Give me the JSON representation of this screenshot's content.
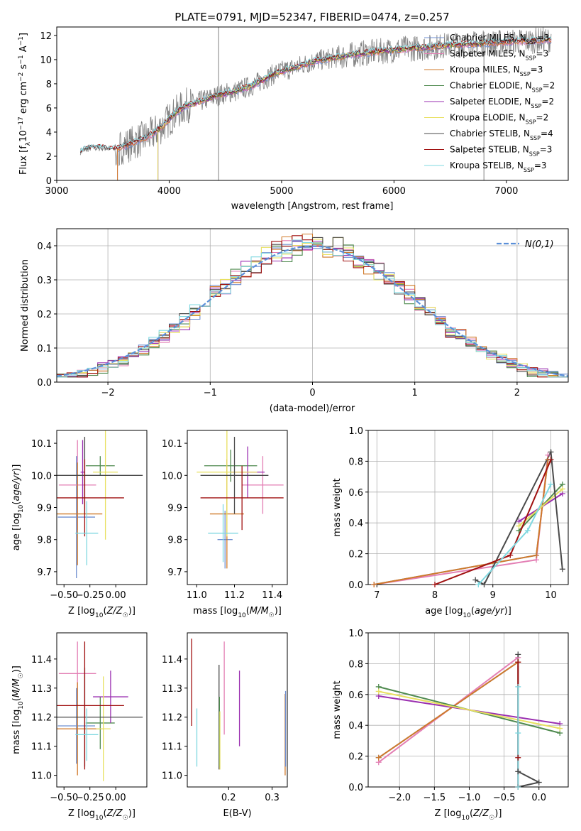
{
  "figure": {
    "title": "PLATE=0791, MJD=52347, FIBERID=0474, z=0.257"
  },
  "colors": {
    "Chabrier MILES": "#6f8fd0",
    "Salpeter MILES": "#e37fb4",
    "Kroupa MILES": "#d07a2a",
    "Chabrier ELODIE": "#4f8a4f",
    "Salpeter ELODIE": "#9a2fb0",
    "Kroupa ELODIE": "#e8e060",
    "Chabrier STELIB": "#4a4a4a",
    "Salpeter STELIB": "#a01010",
    "Kroupa STELIB": "#7fd8e0",
    "data": "#808080",
    "normal": "#5b8fd8"
  },
  "models": [
    "Chabrier MILES",
    "Salpeter MILES",
    "Kroupa MILES",
    "Chabrier ELODIE",
    "Salpeter ELODIE",
    "Kroupa ELODIE",
    "Chabrier STELIB",
    "Salpeter STELIB",
    "Kroupa STELIB"
  ],
  "chart_data": [
    {
      "id": "spectrum",
      "type": "line",
      "xlabel": "wavelength [Angstrom, rest frame]",
      "ylabel": "Flux [f_λ10^-17 erg cm^-2 s^-1 A^-1]",
      "xlim": [
        3000,
        7550
      ],
      "ylim": [
        0,
        12.7
      ],
      "xticks": [
        3000,
        4000,
        5000,
        6000,
        7000
      ],
      "yticks": [
        0,
        2,
        4,
        6,
        8,
        10,
        12
      ],
      "grid": false,
      "legend_position": "top-right",
      "legend": [
        {
          "model": "Chabrier MILES",
          "label": "Chabrier MILES, N",
          "sub": "SSP",
          "tail": "=3"
        },
        {
          "model": "Salpeter MILES",
          "label": "Salpeter MILES, N",
          "sub": "SSP",
          "tail": "=3"
        },
        {
          "model": "Kroupa MILES",
          "label": "Kroupa MILES, N",
          "sub": "SSP",
          "tail": "=3"
        },
        {
          "model": "Chabrier ELODIE",
          "label": "Chabrier ELODIE, N",
          "sub": "SSP",
          "tail": "=2"
        },
        {
          "model": "Salpeter ELODIE",
          "label": "Salpeter ELODIE, N",
          "sub": "SSP",
          "tail": "=2"
        },
        {
          "model": "Kroupa ELODIE",
          "label": "Kroupa ELODIE, N",
          "sub": "SSP",
          "tail": "=2"
        },
        {
          "model": "Chabrier STELIB",
          "label": "Chabrier STELIB, N",
          "sub": "SSP",
          "tail": "=4"
        },
        {
          "model": "Salpeter STELIB",
          "label": "Salpeter STELIB, N",
          "sub": "SSP",
          "tail": "=3"
        },
        {
          "model": "Kroupa STELIB",
          "label": "Kroupa STELIB, N",
          "sub": "SSP",
          "tail": "=3"
        }
      ],
      "continuum": {
        "x": [
          3210,
          3300,
          3400,
          3500,
          3550,
          3650,
          3750,
          3850,
          3950,
          4050,
          4150,
          4300,
          4450,
          4600,
          4750,
          4850,
          4950,
          5100,
          5300,
          5500,
          5700,
          5900,
          6100,
          6300,
          6500,
          6700,
          6900,
          7100,
          7300,
          7550
        ],
        "y": [
          2.4,
          2.7,
          2.7,
          2.6,
          2.7,
          3.0,
          3.4,
          3.8,
          4.6,
          5.5,
          6.2,
          6.6,
          7.1,
          7.4,
          7.9,
          8.4,
          8.9,
          9.3,
          9.9,
          10.2,
          10.5,
          10.7,
          10.9,
          11.0,
          11.2,
          11.3,
          11.4,
          11.5,
          11.6,
          11.7
        ]
      },
      "model_ranges": {
        "Chabrier MILES": [
          3540,
          7400
        ],
        "Salpeter MILES": [
          3540,
          7400
        ],
        "Kroupa MILES": [
          3540,
          7400
        ],
        "Chabrier ELODIE": [
          3900,
          6800
        ],
        "Salpeter ELODIE": [
          3900,
          6800
        ],
        "Kroupa ELODIE": [
          3900,
          6800
        ],
        "Chabrier STELIB": [
          3210,
          7400
        ],
        "Salpeter STELIB": [
          3210,
          7400
        ],
        "Kroupa STELIB": [
          3210,
          7400
        ]
      }
    },
    {
      "id": "residuals",
      "type": "histogram",
      "xlabel": "(data-model)/error",
      "ylabel": "Normed distribution",
      "xlim": [
        -2.5,
        2.5
      ],
      "ylim": [
        0,
        0.45
      ],
      "xticks": [
        -2,
        -1,
        0,
        1,
        2
      ],
      "yticks": [
        0.0,
        0.1,
        0.2,
        0.3,
        0.4
      ],
      "grid": true,
      "legend_position": "top-right",
      "normal_label": "N(0,1)",
      "bin_width": 0.1,
      "bin_start": -2.5
    },
    {
      "id": "Z-age",
      "type": "errorbar",
      "xlabel": "Z [log10(Z/Z☉)]",
      "ylabel": "age [log10(age/yr)]",
      "xlim": [
        -0.57,
        0.3
      ],
      "ylim": [
        9.66,
        10.14
      ],
      "xticks": [
        -0.5,
        -0.25,
        0.0
      ],
      "yticks": [
        9.7,
        9.8,
        9.9,
        10.0,
        10.1
      ],
      "points": [
        {
          "model": "Chabrier MILES",
          "x": -0.38,
          "xe": 0.18,
          "y": 9.87,
          "ye": 0.19
        },
        {
          "model": "Salpeter MILES",
          "x": -0.37,
          "xe": 0.18,
          "y": 9.97,
          "ye": 0.14
        },
        {
          "model": "Kroupa MILES",
          "x": -0.37,
          "xe": 0.24,
          "y": 9.88,
          "ye": 0.16
        },
        {
          "model": "Chabrier ELODIE",
          "x": -0.15,
          "xe": 0.14,
          "y": 10.03,
          "ye": 0.03
        },
        {
          "model": "Salpeter ELODIE",
          "x": -0.32,
          "xe": 0.02,
          "y": 10.01,
          "ye": 0.1
        },
        {
          "model": "Kroupa ELODIE",
          "x": -0.1,
          "xe": 0.12,
          "y": 10.01,
          "ye": 0.21
        },
        {
          "model": "Chabrier STELIB",
          "x": -0.3,
          "xe": 0.56,
          "y": 10.0,
          "ye": 0.12
        },
        {
          "model": "Salpeter STELIB",
          "x": -0.3,
          "xe": 0.38,
          "y": 9.93,
          "ye": 0.12
        },
        {
          "model": "Kroupa STELIB",
          "x": -0.28,
          "xe": 0.11,
          "y": 9.82,
          "ye": 0.1
        }
      ]
    },
    {
      "id": "mass-age",
      "type": "errorbar",
      "xlabel": "mass [log10(M/M☉)]",
      "ylabel": "",
      "xlim": [
        10.95,
        11.48
      ],
      "ylim": [
        9.66,
        10.14
      ],
      "xticks": [
        11.0,
        11.2,
        11.4
      ],
      "yticks": [
        9.7,
        9.8,
        9.9,
        10.0,
        10.1
      ],
      "points": [
        {
          "model": "Chabrier MILES",
          "x": 11.15,
          "xe": 0.04,
          "y": 9.8,
          "ye": 0.09
        },
        {
          "model": "Salpeter MILES",
          "x": 11.35,
          "xe": 0.11,
          "y": 9.97,
          "ye": 0.09
        },
        {
          "model": "Kroupa MILES",
          "x": 11.16,
          "xe": 0.09,
          "y": 9.88,
          "ye": 0.17
        },
        {
          "model": "Chabrier ELODIE",
          "x": 11.18,
          "xe": 0.14,
          "y": 10.03,
          "ye": 0.05
        },
        {
          "model": "Salpeter ELODIE",
          "x": 11.27,
          "xe": 0.09,
          "y": 10.01,
          "ye": 0.08
        },
        {
          "model": "Kroupa ELODIE",
          "x": 11.16,
          "xe": 0.16,
          "y": 10.01,
          "ye": 0.2
        },
        {
          "model": "Chabrier STELIB",
          "x": 11.2,
          "xe": 0.18,
          "y": 10.0,
          "ye": 0.12
        },
        {
          "model": "Salpeter STELIB",
          "x": 11.24,
          "xe": 0.22,
          "y": 9.93,
          "ye": 0.1
        },
        {
          "model": "Kroupa STELIB",
          "x": 11.14,
          "xe": 0.08,
          "y": 9.82,
          "ye": 0.09
        }
      ]
    },
    {
      "id": "age-weight",
      "type": "line",
      "xlabel": "age [log10(age/yr)]",
      "ylabel": "mass weight",
      "xlim": [
        6.85,
        10.3
      ],
      "ylim": [
        0,
        1
      ],
      "xticks": [
        7,
        8,
        9,
        10
      ],
      "yticks": [
        0.0,
        0.2,
        0.4,
        0.6,
        0.8,
        1.0
      ],
      "grid": true,
      "series": [
        {
          "model": "Chabrier MILES",
          "x": [
            6.95,
            9.75,
            9.95
          ],
          "y": [
            0.0,
            0.19,
            0.81
          ]
        },
        {
          "model": "Salpeter MILES",
          "x": [
            6.95,
            9.75,
            9.95
          ],
          "y": [
            0.0,
            0.16,
            0.84
          ]
        },
        {
          "model": "Kroupa MILES",
          "x": [
            6.95,
            9.75,
            9.95
          ],
          "y": [
            0.0,
            0.19,
            0.81
          ]
        },
        {
          "model": "Chabrier ELODIE",
          "x": [
            9.45,
            10.2
          ],
          "y": [
            0.35,
            0.65
          ]
        },
        {
          "model": "Salpeter ELODIE",
          "x": [
            9.45,
            10.2
          ],
          "y": [
            0.41,
            0.59
          ]
        },
        {
          "model": "Kroupa ELODIE",
          "x": [
            9.45,
            10.2
          ],
          "y": [
            0.38,
            0.62
          ]
        },
        {
          "model": "Chabrier STELIB",
          "x": [
            8.7,
            8.85,
            10.0,
            10.2
          ],
          "y": [
            0.03,
            0.0,
            0.86,
            0.1
          ]
        },
        {
          "model": "Salpeter STELIB",
          "x": [
            8.0,
            9.3,
            10.0
          ],
          "y": [
            0.0,
            0.19,
            0.81
          ]
        },
        {
          "model": "Kroupa STELIB",
          "x": [
            8.75,
            9.6,
            10.0
          ],
          "y": [
            0.0,
            0.35,
            0.65
          ]
        }
      ]
    },
    {
      "id": "Z-mass",
      "type": "errorbar",
      "xlabel": "Z [log10(Z/Z☉)]",
      "ylabel": "mass [log10(M/M☉)]",
      "xlim": [
        -0.57,
        0.3
      ],
      "ylim": [
        10.96,
        11.49
      ],
      "xticks": [
        -0.5,
        -0.25,
        0.0
      ],
      "yticks": [
        11.0,
        11.1,
        11.2,
        11.3,
        11.4
      ],
      "points": [
        {
          "model": "Chabrier MILES",
          "x": -0.38,
          "xe": 0.18,
          "y": 11.17,
          "ye": 0.13
        },
        {
          "model": "Salpeter MILES",
          "x": -0.37,
          "xe": 0.18,
          "y": 11.35,
          "ye": 0.11
        },
        {
          "model": "Kroupa MILES",
          "x": -0.37,
          "xe": 0.24,
          "y": 11.16,
          "ye": 0.16
        },
        {
          "model": "Chabrier ELODIE",
          "x": -0.15,
          "xe": 0.14,
          "y": 11.18,
          "ye": 0.09
        },
        {
          "model": "Salpeter ELODIE",
          "x": -0.05,
          "xe": 0.17,
          "y": 11.27,
          "ye": 0.09
        },
        {
          "model": "Kroupa ELODIE",
          "x": -0.12,
          "xe": 0.07,
          "y": 11.16,
          "ye": 0.18
        },
        {
          "model": "Chabrier STELIB",
          "x": -0.3,
          "xe": 0.56,
          "y": 11.2,
          "ye": 0.17
        },
        {
          "model": "Salpeter STELIB",
          "x": -0.3,
          "xe": 0.38,
          "y": 11.24,
          "ye": 0.22
        },
        {
          "model": "Kroupa STELIB",
          "x": -0.28,
          "xe": 0.11,
          "y": 11.14,
          "ye": 0.09
        }
      ]
    },
    {
      "id": "ebv-mass",
      "type": "errorbar",
      "xlabel": "E(B-V)",
      "ylabel": "",
      "xlim": [
        0.105,
        0.335
      ],
      "ylim": [
        10.96,
        11.49
      ],
      "xticks": [
        0.2,
        0.3
      ],
      "yticks": [
        11.0,
        11.1,
        11.2,
        11.3,
        11.4
      ],
      "points": [
        {
          "model": "Salpeter STELIB",
          "x": 0.115,
          "xe": 0,
          "y": 11.32,
          "ye": 0.15
        },
        {
          "model": "Kroupa STELIB",
          "x": 0.127,
          "xe": 0,
          "y": 11.13,
          "ye": 0.1
        },
        {
          "model": "Chabrier STELIB",
          "x": 0.178,
          "xe": 0,
          "y": 11.2,
          "ye": 0.18
        },
        {
          "model": "Chabrier ELODIE",
          "x": 0.179,
          "xe": 0,
          "y": 11.15,
          "ye": 0.12
        },
        {
          "model": "Kroupa ELODIE",
          "x": 0.18,
          "xe": 0,
          "y": 11.12,
          "ye": 0.1
        },
        {
          "model": "Salpeter MILES",
          "x": 0.19,
          "xe": 0,
          "y": 11.3,
          "ye": 0.16
        },
        {
          "model": "Salpeter ELODIE",
          "x": 0.225,
          "xe": 0,
          "y": 11.23,
          "ye": 0.13
        },
        {
          "model": "Kroupa MILES",
          "x": 0.33,
          "xe": 0,
          "y": 11.14,
          "ye": 0.14
        },
        {
          "model": "Chabrier MILES",
          "x": 0.331,
          "xe": 0,
          "y": 11.16,
          "ye": 0.13
        }
      ]
    },
    {
      "id": "Z-weight",
      "type": "line",
      "xlabel": "Z [log10(Z/Z☉)]",
      "ylabel": "mass weight",
      "xlim": [
        -2.45,
        0.42
      ],
      "ylim": [
        0,
        1
      ],
      "xticks": [
        -2.0,
        -1.5,
        -1.0,
        -0.5,
        0.0
      ],
      "yticks": [
        0.0,
        0.2,
        0.4,
        0.6,
        0.8,
        1.0
      ],
      "grid": true,
      "series": [
        {
          "model": "Chabrier MILES",
          "x": [
            -2.3,
            -0.3
          ],
          "y": [
            0.19,
            0.81
          ]
        },
        {
          "model": "Salpeter MILES",
          "x": [
            -2.3,
            -0.3
          ],
          "y": [
            0.16,
            0.84
          ]
        },
        {
          "model": "Kroupa MILES",
          "x": [
            -2.3,
            -0.3
          ],
          "y": [
            0.19,
            0.81
          ]
        },
        {
          "model": "Chabrier ELODIE",
          "x": [
            -2.3,
            0.3
          ],
          "y": [
            0.65,
            0.35
          ]
        },
        {
          "model": "Salpeter ELODIE",
          "x": [
            -2.3,
            0.3
          ],
          "y": [
            0.59,
            0.41
          ]
        },
        {
          "model": "Kroupa ELODIE",
          "x": [
            -2.3,
            0.3
          ],
          "y": [
            0.62,
            0.38
          ]
        },
        {
          "model": "Chabrier STELIB",
          "x": [
            -0.3,
            -0.3,
            0.0,
            -0.3
          ],
          "y": [
            0.86,
            0.1,
            0.03,
            0.0
          ]
        },
        {
          "model": "Salpeter STELIB",
          "x": [
            -0.3,
            -0.3,
            -0.3
          ],
          "y": [
            0.0,
            0.19,
            0.81
          ]
        },
        {
          "model": "Kroupa STELIB",
          "x": [
            -0.3,
            -0.3,
            -0.3
          ],
          "y": [
            0.35,
            0.65,
            0.0
          ]
        }
      ]
    }
  ]
}
